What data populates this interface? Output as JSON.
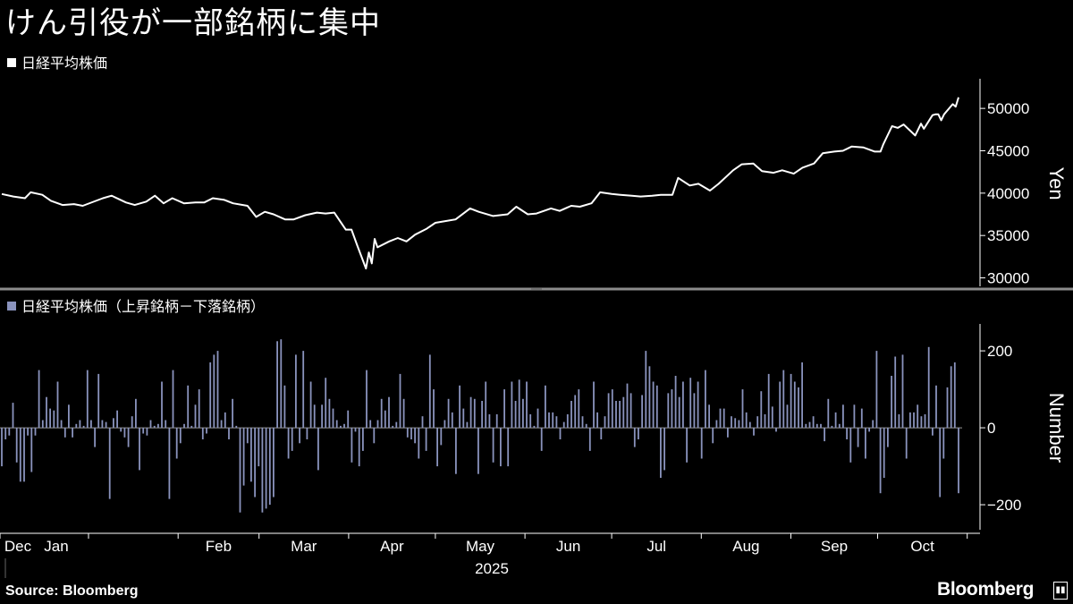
{
  "title": "けん引役が一部銘柄に集中",
  "source": "Source: Bloomberg",
  "brand": "Bloomberg",
  "year_label": "2025",
  "colors": {
    "background": "#000000",
    "line": "#ffffff",
    "bar": "#8a93bd",
    "axis": "#ffffff",
    "divider": "#8c8c8c"
  },
  "chart_data": [
    {
      "type": "line",
      "legend": "日経平均株価",
      "ylabel": "Yen",
      "ylim": [
        29000,
        53500
      ],
      "yticks": [
        30000,
        35000,
        40000,
        45000,
        50000
      ],
      "x_start": "2024-12-02",
      "x_end": "2025-10-24",
      "x_tick_labels": [
        "Dec",
        "Jan",
        "Feb",
        "Mar",
        "Apr",
        "May",
        "Jun",
        "Jul",
        "Aug",
        "Sep",
        "Oct"
      ],
      "series": [
        {
          "points": [
            [
              "2024-12-02",
              39900
            ],
            [
              "2024-12-06",
              39600
            ],
            [
              "2024-12-10",
              39400
            ],
            [
              "2024-12-12",
              40100
            ],
            [
              "2024-12-16",
              39800
            ],
            [
              "2024-12-19",
              39100
            ],
            [
              "2024-12-23",
              38600
            ],
            [
              "2024-12-27",
              38700
            ],
            [
              "2024-12-30",
              38500
            ],
            [
              "2025-01-06",
              39400
            ],
            [
              "2025-01-09",
              39700
            ],
            [
              "2025-01-14",
              38900
            ],
            [
              "2025-01-17",
              38600
            ],
            [
              "2025-01-21",
              39000
            ],
            [
              "2025-01-24",
              39700
            ],
            [
              "2025-01-27",
              38800
            ],
            [
              "2025-01-30",
              39400
            ],
            [
              "2025-02-03",
              38800
            ],
            [
              "2025-02-07",
              38900
            ],
            [
              "2025-02-10",
              38900
            ],
            [
              "2025-02-13",
              39400
            ],
            [
              "2025-02-17",
              39200
            ],
            [
              "2025-02-20",
              38800
            ],
            [
              "2025-02-25",
              38500
            ],
            [
              "2025-02-28",
              37200
            ],
            [
              "2025-03-03",
              37800
            ],
            [
              "2025-03-06",
              37500
            ],
            [
              "2025-03-10",
              36900
            ],
            [
              "2025-03-13",
              36900
            ],
            [
              "2025-03-17",
              37400
            ],
            [
              "2025-03-21",
              37700
            ],
            [
              "2025-03-24",
              37600
            ],
            [
              "2025-03-27",
              37700
            ],
            [
              "2025-03-31",
              35700
            ],
            [
              "2025-04-02",
              35700
            ],
            [
              "2025-04-04",
              33800
            ],
            [
              "2025-04-07",
              31100
            ],
            [
              "2025-04-08",
              33000
            ],
            [
              "2025-04-09",
              31700
            ],
            [
              "2025-04-10",
              34600
            ],
            [
              "2025-04-11",
              33600
            ],
            [
              "2025-04-15",
              34300
            ],
            [
              "2025-04-18",
              34700
            ],
            [
              "2025-04-21",
              34300
            ],
            [
              "2025-04-24",
              35100
            ],
            [
              "2025-04-28",
              35800
            ],
            [
              "2025-05-01",
              36500
            ],
            [
              "2025-05-08",
              36900
            ],
            [
              "2025-05-13",
              38200
            ],
            [
              "2025-05-16",
              37800
            ],
            [
              "2025-05-21",
              37300
            ],
            [
              "2025-05-26",
              37500
            ],
            [
              "2025-05-29",
              38400
            ],
            [
              "2025-06-02",
              37500
            ],
            [
              "2025-06-05",
              37600
            ],
            [
              "2025-06-10",
              38200
            ],
            [
              "2025-06-13",
              37900
            ],
            [
              "2025-06-17",
              38500
            ],
            [
              "2025-06-20",
              38400
            ],
            [
              "2025-06-24",
              38800
            ],
            [
              "2025-06-27",
              40100
            ],
            [
              "2025-07-01",
              39900
            ],
            [
              "2025-07-04",
              39800
            ],
            [
              "2025-07-08",
              39700
            ],
            [
              "2025-07-11",
              39600
            ],
            [
              "2025-07-15",
              39700
            ],
            [
              "2025-07-18",
              39800
            ],
            [
              "2025-07-22",
              39800
            ],
            [
              "2025-07-24",
              41800
            ],
            [
              "2025-07-28",
              40900
            ],
            [
              "2025-07-31",
              41100
            ],
            [
              "2025-08-04",
              40300
            ],
            [
              "2025-08-07",
              41100
            ],
            [
              "2025-08-12",
              42700
            ],
            [
              "2025-08-15",
              43400
            ],
            [
              "2025-08-19",
              43500
            ],
            [
              "2025-08-22",
              42600
            ],
            [
              "2025-08-26",
              42400
            ],
            [
              "2025-08-29",
              42700
            ],
            [
              "2025-09-02",
              42300
            ],
            [
              "2025-09-05",
              43000
            ],
            [
              "2025-09-09",
              43500
            ],
            [
              "2025-09-12",
              44700
            ],
            [
              "2025-09-16",
              44900
            ],
            [
              "2025-09-19",
              45000
            ],
            [
              "2025-09-22",
              45500
            ],
            [
              "2025-09-26",
              45400
            ],
            [
              "2025-09-30",
              44900
            ],
            [
              "2025-10-02",
              44900
            ],
            [
              "2025-10-03",
              45800
            ],
            [
              "2025-10-06",
              47900
            ],
            [
              "2025-10-08",
              47700
            ],
            [
              "2025-10-10",
              48100
            ],
            [
              "2025-10-14",
              46800
            ],
            [
              "2025-10-16",
              48200
            ],
            [
              "2025-10-17",
              47600
            ],
            [
              "2025-10-20",
              49200
            ],
            [
              "2025-10-21",
              49300
            ],
            [
              "2025-10-22",
              49300
            ],
            [
              "2025-10-23",
              48600
            ],
            [
              "2025-10-24",
              49300
            ],
            [
              "2025-10-27",
              50500
            ],
            [
              "2025-10-28",
              50200
            ],
            [
              "2025-10-29",
              51300
            ]
          ]
        }
      ]
    },
    {
      "type": "bar",
      "legend": "日経平均株価（上昇銘柄－下落銘柄）",
      "ylabel": "Number",
      "ylim": [
        -265,
        270
      ],
      "yticks": [
        -200,
        0,
        200
      ],
      "x_start": "2024-12-02",
      "x_end": "2025-10-29",
      "x_tick_labels": [
        "Dec",
        "Jan",
        "Feb",
        "Mar",
        "Apr",
        "May",
        "Jun",
        "Jul",
        "Aug",
        "Sep",
        "Oct"
      ],
      "series": [
        {
          "values": [
            -100,
            -30,
            -20,
            65,
            -90,
            -140,
            -140,
            -20,
            -115,
            -20,
            150,
            20,
            80,
            50,
            45,
            120,
            20,
            -25,
            60,
            -25,
            10,
            20,
            5,
            150,
            20,
            -50,
            140,
            20,
            15,
            -185,
            25,
            45,
            -10,
            -25,
            -50,
            30,
            75,
            -110,
            -15,
            -20,
            20,
            5,
            10,
            120,
            20,
            -185,
            150,
            -80,
            -40,
            10,
            110,
            5,
            60,
            100,
            -30,
            -15,
            170,
            190,
            200,
            20,
            40,
            -30,
            75,
            5,
            -220,
            -150,
            -40,
            -140,
            -180,
            -100,
            -220,
            -210,
            -200,
            -180,
            225,
            230,
            110,
            -80,
            -60,
            190,
            -40,
            200,
            -30,
            120,
            60,
            -110,
            60,
            130,
            75,
            50,
            20,
            5,
            10,
            45,
            -90,
            -10,
            -100,
            -60,
            150,
            20,
            -40,
            20,
            75,
            45,
            80,
            5,
            15,
            140,
            75,
            -25,
            -30,
            -40,
            -80,
            30,
            -60,
            190,
            100,
            -100,
            -45,
            20,
            75,
            40,
            -120,
            110,
            50,
            15,
            80,
            75,
            -120,
            70,
            120,
            35,
            -90,
            35,
            -100,
            100,
            -100,
            120,
            70,
            125,
            75,
            120,
            35,
            5,
            50,
            -60,
            110,
            40,
            40,
            30,
            -30,
            15,
            35,
            70,
            85,
            100,
            30,
            10,
            -60,
            120,
            40,
            -30,
            30,
            90,
            100,
            70,
            70,
            80,
            115,
            90,
            -50,
            -30,
            85,
            200,
            160,
            120,
            110,
            -130,
            -110,
            90,
            100,
            135,
            80,
            120,
            -90,
            130,
            90,
            120,
            -80,
            150,
            60,
            -40,
            20,
            50,
            50,
            -25,
            30,
            25,
            20,
            100,
            40,
            15,
            -20,
            30,
            95,
            35,
            140,
            55,
            -10,
            120,
            150,
            60,
            140,
            120,
            105,
            170,
            10,
            15,
            30,
            10,
            10,
            -35,
            75,
            5,
            40,
            10,
            60,
            -30,
            -90,
            60,
            -50,
            50,
            -80,
            -10,
            20,
            200,
            -170,
            -130,
            -50,
            135,
            185,
            35,
            190,
            -80,
            40,
            40,
            60,
            30,
            35,
            210,
            -20,
            110,
            -180,
            -80,
            105,
            160,
            170,
            -170
          ]
        }
      ]
    }
  ]
}
